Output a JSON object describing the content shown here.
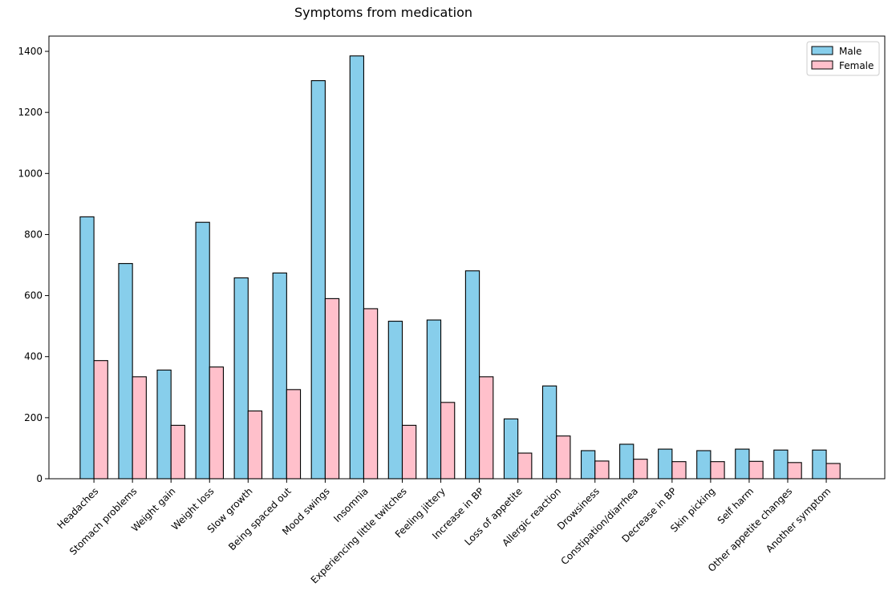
{
  "chart_data": {
    "type": "bar",
    "title": "Symptoms from medication",
    "xlabel": "",
    "ylabel": "",
    "ylim": [
      0,
      1450
    ],
    "yticks": [
      0,
      200,
      400,
      600,
      800,
      1000,
      1200,
      1400
    ],
    "grid": false,
    "legend_position": "top-right",
    "categories": [
      "Headaches",
      "Stomach problems",
      "Weight gain",
      "Weight loss",
      "Slow growth",
      "Being spaced out",
      "Mood swings",
      "Insomnia",
      "Experiencing little twitches",
      "Feeling jittery",
      "Increase in BP",
      "Loss of appetite",
      "Allergic reaction",
      "Drowsiness",
      "Constipation/diarrhea",
      "Decrease in BP",
      "Skin picking",
      "Self harm",
      "Other appetite changes",
      "Another symptom"
    ],
    "series": [
      {
        "name": "Male",
        "color": "#87CEEB",
        "values": [
          858,
          705,
          356,
          840,
          658,
          674,
          1304,
          1385,
          516,
          520,
          681,
          196,
          304,
          92,
          113,
          97,
          92,
          97,
          94,
          94
        ]
      },
      {
        "name": "Female",
        "color": "#FFC0CB",
        "values": [
          387,
          334,
          175,
          366,
          222,
          292,
          590,
          557,
          175,
          250,
          334,
          84,
          140,
          58,
          64,
          56,
          56,
          57,
          53,
          50
        ]
      }
    ]
  }
}
